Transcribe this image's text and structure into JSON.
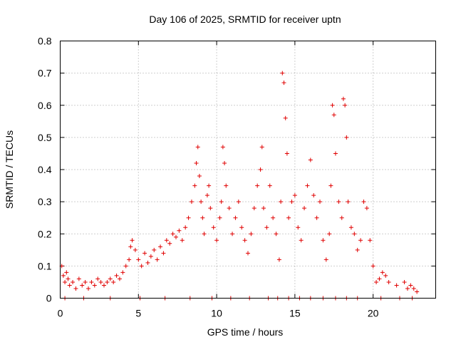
{
  "chart_data": {
    "type": "scatter",
    "title": "Day 106 of 2025, SRMTID for receiver uptn",
    "xlabel": "GPS time / hours",
    "ylabel": "SRMTID / TECUs",
    "xlim": [
      0,
      24
    ],
    "ylim": [
      0,
      0.8
    ],
    "xticks": [
      0,
      5,
      10,
      15,
      20
    ],
    "xtick_labels": [
      "0",
      "5",
      "10",
      "15",
      "20"
    ],
    "yticks": [
      0,
      0.1,
      0.2,
      0.3,
      0.4,
      0.5,
      0.6,
      0.7,
      0.8
    ],
    "ytick_labels": [
      "0",
      "0.1",
      "0.2",
      "0.3",
      "0.4",
      "0.5",
      "0.6",
      "0.7",
      "0.8"
    ],
    "grid": true,
    "marker": "plus",
    "series": [
      {
        "name": "SRMTID",
        "color": "#e00000",
        "x": [
          0.1,
          0.2,
          0.3,
          0.4,
          0.5,
          0.6,
          0.8,
          1.0,
          1.2,
          1.4,
          1.6,
          1.8,
          2.0,
          2.2,
          2.4,
          2.6,
          2.8,
          3.0,
          3.2,
          3.4,
          3.6,
          3.8,
          4.0,
          4.2,
          4.4,
          4.5,
          4.6,
          4.8,
          5.0,
          5.2,
          5.4,
          5.6,
          5.8,
          6.0,
          6.2,
          6.4,
          6.6,
          6.8,
          7.0,
          7.2,
          7.4,
          7.6,
          7.8,
          8.0,
          8.2,
          8.4,
          8.6,
          8.7,
          8.8,
          8.9,
          9.0,
          9.1,
          9.2,
          9.4,
          9.5,
          9.6,
          9.8,
          10.0,
          10.2,
          10.3,
          10.4,
          10.5,
          10.6,
          10.8,
          11.0,
          11.2,
          11.4,
          11.6,
          11.8,
          12.0,
          12.2,
          12.4,
          12.6,
          12.8,
          12.9,
          13.0,
          13.2,
          13.4,
          13.6,
          13.8,
          14.0,
          14.1,
          14.2,
          14.3,
          14.4,
          14.5,
          14.6,
          14.8,
          15.0,
          15.2,
          15.4,
          15.6,
          15.8,
          16.0,
          16.2,
          16.4,
          16.6,
          16.8,
          17.0,
          17.2,
          17.3,
          17.4,
          17.5,
          17.6,
          17.8,
          18.0,
          18.1,
          18.2,
          18.3,
          18.4,
          18.6,
          18.8,
          19.0,
          19.2,
          19.4,
          19.6,
          19.8,
          20.0,
          20.2,
          20.4,
          20.6,
          20.8,
          21.0,
          21.5,
          22.0,
          22.2,
          22.4,
          22.6,
          22.8,
          0.3,
          1.5,
          3.2,
          5.1,
          6.7,
          8.3,
          9.7,
          10.9,
          12.1,
          13.3,
          13.9,
          14.6,
          15.3,
          16.0,
          16.8,
          17.6,
          18.3,
          19.0,
          20.5,
          21.7,
          22.5
        ],
        "y": [
          0.1,
          0.07,
          0.05,
          0.08,
          0.06,
          0.04,
          0.05,
          0.03,
          0.06,
          0.04,
          0.05,
          0.03,
          0.05,
          0.04,
          0.06,
          0.05,
          0.04,
          0.05,
          0.06,
          0.05,
          0.07,
          0.06,
          0.08,
          0.1,
          0.12,
          0.16,
          0.18,
          0.15,
          0.12,
          0.1,
          0.14,
          0.11,
          0.13,
          0.15,
          0.12,
          0.16,
          0.14,
          0.18,
          0.17,
          0.2,
          0.19,
          0.21,
          0.18,
          0.22,
          0.25,
          0.3,
          0.35,
          0.42,
          0.47,
          0.38,
          0.3,
          0.25,
          0.2,
          0.32,
          0.35,
          0.28,
          0.22,
          0.18,
          0.25,
          0.3,
          0.47,
          0.42,
          0.35,
          0.28,
          0.2,
          0.25,
          0.3,
          0.22,
          0.18,
          0.14,
          0.2,
          0.28,
          0.35,
          0.4,
          0.47,
          0.28,
          0.22,
          0.35,
          0.25,
          0.2,
          0.12,
          0.3,
          0.7,
          0.67,
          0.56,
          0.45,
          0.25,
          0.3,
          0.32,
          0.22,
          0.18,
          0.28,
          0.35,
          0.43,
          0.32,
          0.25,
          0.3,
          0.18,
          0.12,
          0.2,
          0.35,
          0.6,
          0.57,
          0.45,
          0.3,
          0.25,
          0.62,
          0.6,
          0.5,
          0.3,
          0.22,
          0.2,
          0.15,
          0.18,
          0.3,
          0.28,
          0.18,
          0.1,
          0.05,
          0.06,
          0.08,
          0.07,
          0.05,
          0.04,
          0.05,
          0.03,
          0.04,
          0.03,
          0.02,
          0,
          0,
          0,
          0,
          0,
          0,
          0,
          0,
          0,
          0,
          0,
          0,
          0,
          0,
          0,
          0,
          0,
          0,
          0,
          0,
          0
        ]
      }
    ]
  }
}
